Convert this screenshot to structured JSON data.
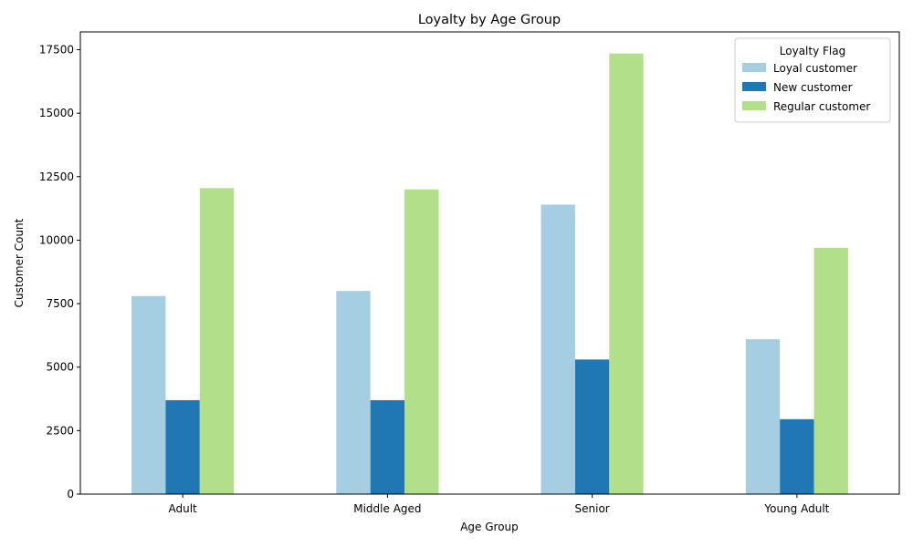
{
  "chart_data": {
    "type": "bar",
    "title": "Loyalty by Age Group",
    "xlabel": "Age Group",
    "ylabel": "Customer Count",
    "categories": [
      "Adult",
      "Middle Aged",
      "Senior",
      "Young Adult"
    ],
    "series": [
      {
        "name": "Loyal customer",
        "color": "#a6cee3",
        "values": [
          7800,
          8000,
          11400,
          6100
        ]
      },
      {
        "name": "New customer",
        "color": "#1f78b4",
        "values": [
          3700,
          3700,
          5300,
          2950
        ]
      },
      {
        "name": "Regular customer",
        "color": "#b2df8a",
        "values": [
          12050,
          12000,
          17350,
          9700
        ]
      }
    ],
    "ylim": [
      0,
      18200
    ],
    "yticks": [
      0,
      2500,
      5000,
      7500,
      10000,
      12500,
      15000,
      17500
    ],
    "legend": {
      "title": "Loyalty Flag",
      "placement": "top-right"
    },
    "grid": false
  }
}
